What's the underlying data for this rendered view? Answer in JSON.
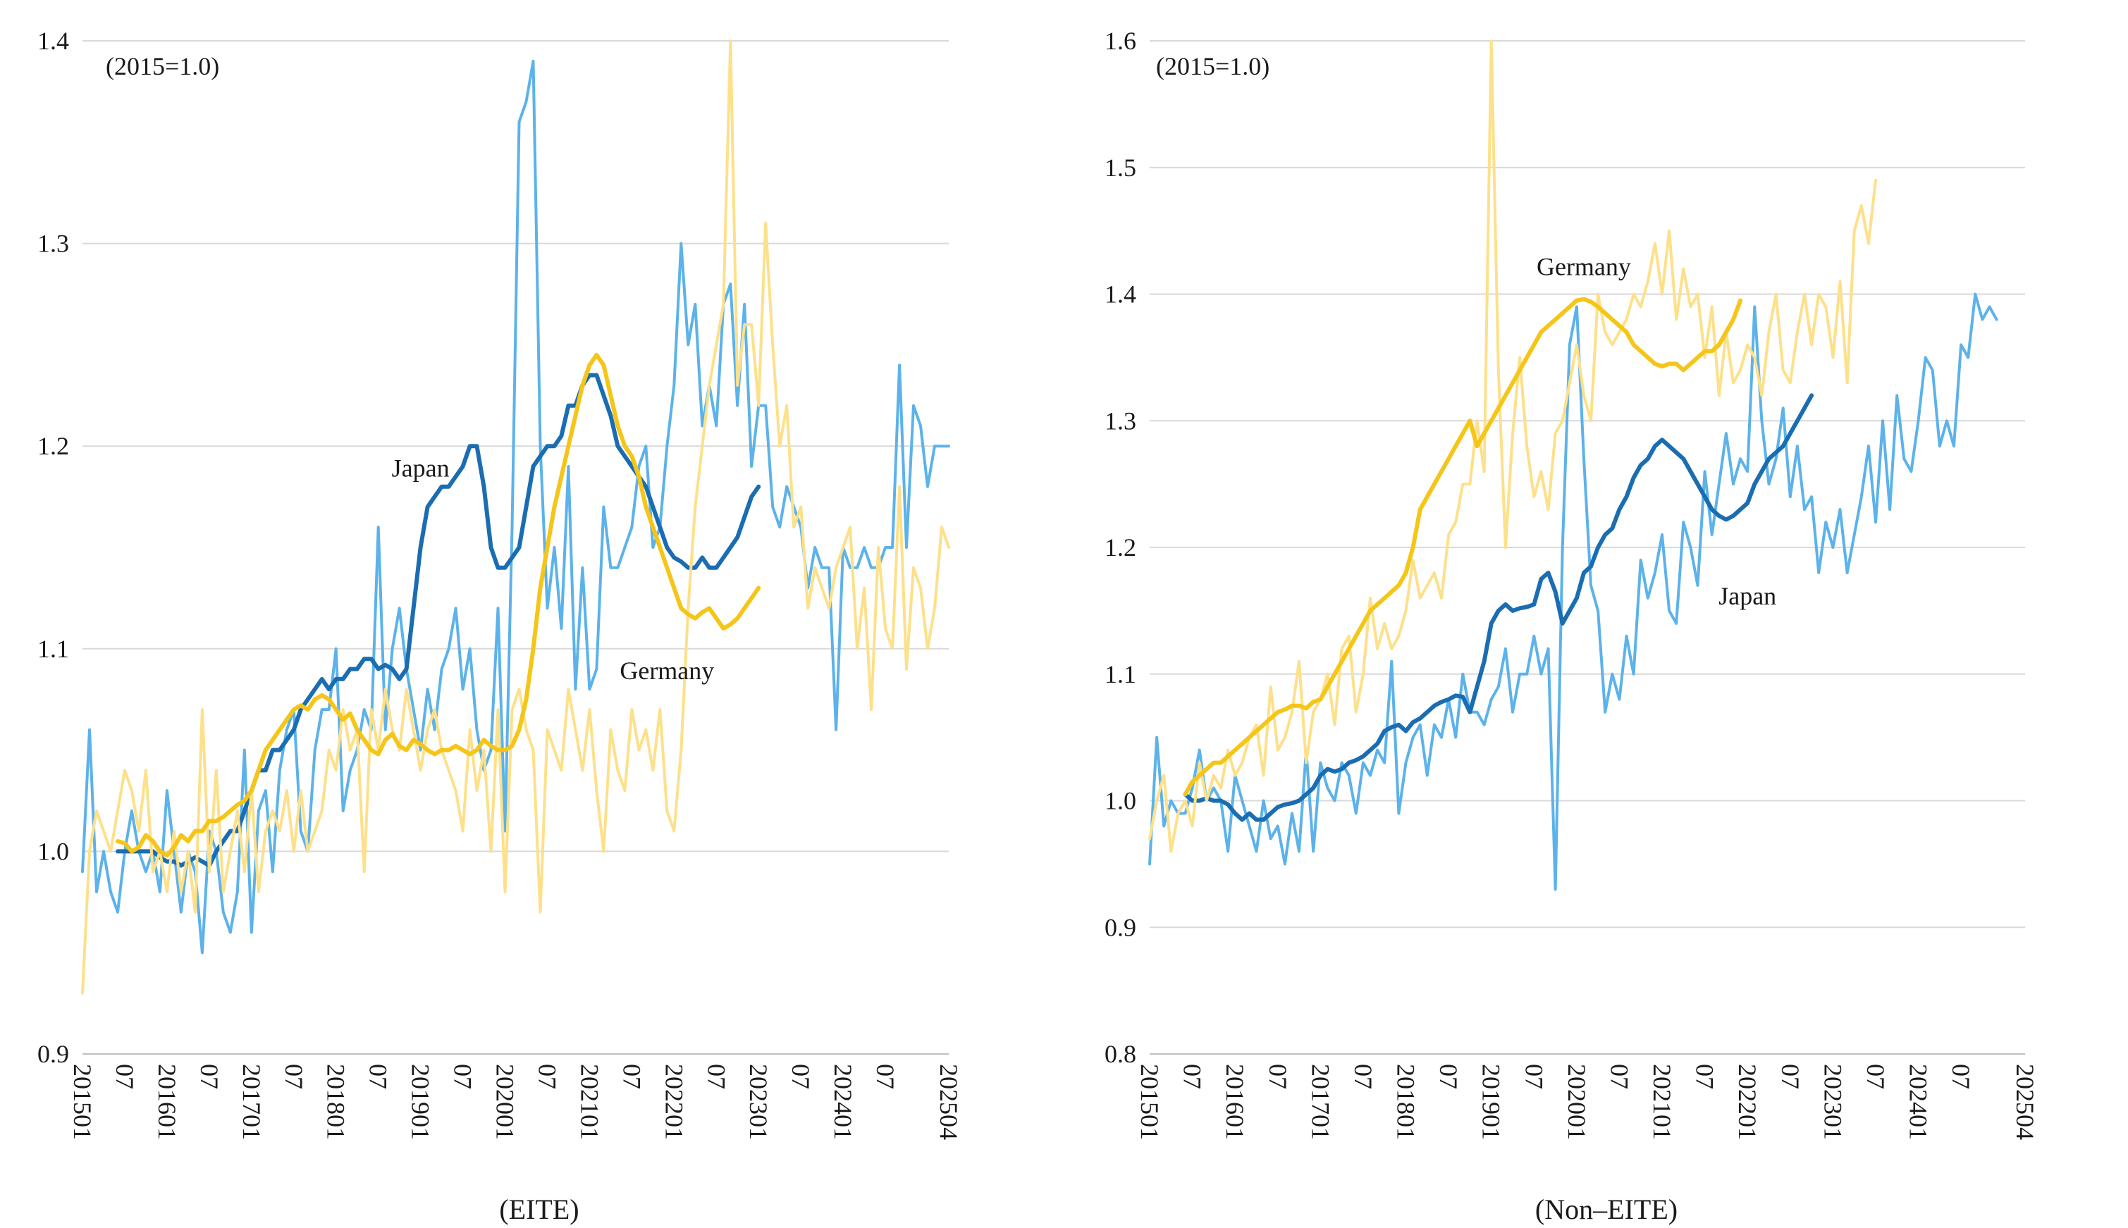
{
  "chart_data": [
    {
      "type": "line",
      "note": "(2015=1.0)",
      "xlabel": "(EITE)",
      "ylim": [
        0.9,
        1.4
      ],
      "yticks": [
        "0.9",
        "1.0",
        "1.1",
        "1.2",
        "1.3",
        "1.4"
      ],
      "x_start": "2015-01",
      "x_end": "2025-04",
      "x_tick_labels": [
        "201501",
        "07",
        "201601",
        "07",
        "201701",
        "07",
        "201801",
        "07",
        "201901",
        "07",
        "202001",
        "07",
        "202101",
        "07",
        "202201",
        "07",
        "202301",
        "07",
        "202401",
        "07",
        "202504"
      ],
      "series": [
        {
          "name": "Japan",
          "color": "#5cb2ea",
          "width": 4,
          "start": "2015-01",
          "values": [
            0.99,
            1.06,
            0.98,
            1.0,
            0.98,
            0.97,
            1.0,
            1.02,
            1.0,
            0.99,
            1.0,
            0.98,
            1.03,
            1.0,
            0.97,
            1.0,
            0.99,
            0.95,
            1.01,
            1.0,
            0.97,
            0.96,
            0.98,
            1.05,
            0.96,
            1.02,
            1.03,
            0.99,
            1.04,
            1.06,
            1.07,
            1.01,
            1.0,
            1.05,
            1.07,
            1.07,
            1.1,
            1.02,
            1.04,
            1.05,
            1.07,
            1.06,
            1.16,
            1.06,
            1.1,
            1.12,
            1.09,
            1.07,
            1.05,
            1.08,
            1.06,
            1.09,
            1.1,
            1.12,
            1.08,
            1.1,
            1.06,
            1.04,
            1.05,
            1.12,
            1.01,
            1.16,
            1.36,
            1.37,
            1.39,
            1.2,
            1.12,
            1.15,
            1.11,
            1.19,
            1.08,
            1.14,
            1.08,
            1.09,
            1.17,
            1.14,
            1.14,
            1.15,
            1.16,
            1.19,
            1.2,
            1.15,
            1.16,
            1.2,
            1.23,
            1.3,
            1.25,
            1.27,
            1.21,
            1.23,
            1.21,
            1.27,
            1.28,
            1.22,
            1.27,
            1.19,
            1.22,
            1.22,
            1.17,
            1.16,
            1.18,
            1.17,
            1.16,
            1.13,
            1.15,
            1.14,
            1.14,
            1.06,
            1.15,
            1.14,
            1.14,
            1.15,
            1.14,
            1.14,
            1.15,
            1.15,
            1.24,
            1.15,
            1.22,
            1.21,
            1.18,
            1.2,
            1.2,
            1.2
          ]
        },
        {
          "name": "Japan (moving average)",
          "color": "#1b6db2",
          "width": 6,
          "start": "2015-06",
          "values": [
            1.0,
            1.0,
            1.0,
            1.0,
            1.0,
            1.0,
            0.997,
            0.995,
            0.995,
            0.993,
            0.995,
            0.997,
            0.995,
            0.993,
            1.0,
            1.005,
            1.01,
            1.01,
            1.02,
            1.03,
            1.04,
            1.04,
            1.05,
            1.05,
            1.055,
            1.06,
            1.07,
            1.075,
            1.08,
            1.085,
            1.08,
            1.085,
            1.085,
            1.09,
            1.09,
            1.095,
            1.095,
            1.09,
            1.092,
            1.09,
            1.085,
            1.09,
            1.12,
            1.15,
            1.17,
            1.175,
            1.18,
            1.18,
            1.185,
            1.19,
            1.2,
            1.2,
            1.18,
            1.15,
            1.14,
            1.14,
            1.145,
            1.15,
            1.17,
            1.19,
            1.195,
            1.2,
            1.2,
            1.205,
            1.22,
            1.22,
            1.23,
            1.235,
            1.235,
            1.225,
            1.215,
            1.2,
            1.195,
            1.19,
            1.185,
            1.18,
            1.17,
            1.16,
            1.15,
            1.145,
            1.143,
            1.14,
            1.14,
            1.145,
            1.14,
            1.14,
            1.145,
            1.15,
            1.155,
            1.165,
            1.175,
            1.18
          ]
        },
        {
          "name": "Germany",
          "color": "#fde08a",
          "width": 4,
          "start": "2015-01",
          "values": [
            0.93,
            1.0,
            1.02,
            1.01,
            1.0,
            1.02,
            1.04,
            1.03,
            1.01,
            1.04,
            0.99,
            1.0,
            0.98,
            1.01,
            0.98,
            1.0,
            0.97,
            1.07,
            0.99,
            1.04,
            0.98,
            1.0,
            1.02,
            0.99,
            1.03,
            0.98,
            1.01,
            1.02,
            1.01,
            1.03,
            1.0,
            1.03,
            1.0,
            1.01,
            1.02,
            1.05,
            1.04,
            1.07,
            1.05,
            1.06,
            0.99,
            1.07,
            1.05,
            1.08,
            1.06,
            1.05,
            1.08,
            1.06,
            1.04,
            1.06,
            1.07,
            1.05,
            1.04,
            1.03,
            1.01,
            1.06,
            1.03,
            1.05,
            1.0,
            1.07,
            0.98,
            1.07,
            1.08,
            1.06,
            1.05,
            0.97,
            1.06,
            1.05,
            1.04,
            1.08,
            1.06,
            1.04,
            1.07,
            1.03,
            1.0,
            1.06,
            1.04,
            1.03,
            1.07,
            1.05,
            1.06,
            1.04,
            1.07,
            1.02,
            1.01,
            1.05,
            1.12,
            1.17,
            1.2,
            1.23,
            1.25,
            1.27,
            1.4,
            1.23,
            1.26,
            1.26,
            1.22,
            1.31,
            1.25,
            1.2,
            1.22,
            1.16,
            1.17,
            1.12,
            1.14,
            1.13,
            1.12,
            1.14,
            1.15,
            1.16,
            1.1,
            1.13,
            1.07,
            1.15,
            1.11,
            1.1,
            1.18,
            1.09,
            1.14,
            1.13,
            1.1,
            1.12,
            1.16,
            1.15
          ]
        },
        {
          "name": "Germany (moving average)",
          "color": "#f5c518",
          "width": 6,
          "start": "2015-06",
          "values": [
            1.005,
            1.004,
            1.0,
            1.002,
            1.008,
            1.005,
            1.0,
            0.998,
            1.002,
            1.008,
            1.005,
            1.01,
            1.01,
            1.015,
            1.015,
            1.017,
            1.02,
            1.023,
            1.025,
            1.03,
            1.04,
            1.05,
            1.055,
            1.06,
            1.065,
            1.07,
            1.072,
            1.07,
            1.075,
            1.077,
            1.075,
            1.07,
            1.065,
            1.068,
            1.06,
            1.055,
            1.05,
            1.048,
            1.055,
            1.058,
            1.052,
            1.05,
            1.055,
            1.053,
            1.05,
            1.048,
            1.05,
            1.05,
            1.052,
            1.05,
            1.048,
            1.05,
            1.055,
            1.052,
            1.05,
            1.05,
            1.052,
            1.06,
            1.075,
            1.1,
            1.13,
            1.15,
            1.17,
            1.185,
            1.2,
            1.215,
            1.23,
            1.24,
            1.245,
            1.24,
            1.225,
            1.21,
            1.2,
            1.195,
            1.185,
            1.17,
            1.16,
            1.15,
            1.14,
            1.13,
            1.12,
            1.117,
            1.115,
            1.118,
            1.12,
            1.115,
            1.11,
            1.112,
            1.115,
            1.12,
            1.125,
            1.13
          ]
        }
      ],
      "annotations": [
        {
          "text": "Japan",
          "x": "2019-01",
          "y": 1.185
        },
        {
          "text": "Germany",
          "x": "2021-12",
          "y": 1.085
        }
      ]
    },
    {
      "type": "line",
      "note": "(2015=1.0)",
      "xlabel": "(Non–EITE)",
      "ylim": [
        0.8,
        1.6
      ],
      "yticks": [
        "0.8",
        "0.9",
        "1.0",
        "1.1",
        "1.2",
        "1.3",
        "1.4",
        "1.5",
        "1.6"
      ],
      "x_start": "2015-01",
      "x_end": "2025-04",
      "x_tick_labels": [
        "201501",
        "07",
        "201601",
        "07",
        "201701",
        "07",
        "201801",
        "07",
        "201901",
        "07",
        "202001",
        "07",
        "202101",
        "07",
        "202201",
        "07",
        "202301",
        "07",
        "202401",
        "07",
        "202504"
      ],
      "series": [
        {
          "name": "Japan",
          "color": "#5cb2ea",
          "width": 4,
          "start": "2015-01",
          "values": [
            0.95,
            1.05,
            0.98,
            1.0,
            0.99,
            0.99,
            1.01,
            1.04,
            1.0,
            1.01,
            1.0,
            0.96,
            1.02,
            1.0,
            0.98,
            0.96,
            1.0,
            0.97,
            0.98,
            0.95,
            0.99,
            0.96,
            1.04,
            0.96,
            1.03,
            1.01,
            1.0,
            1.03,
            1.02,
            0.99,
            1.03,
            1.02,
            1.04,
            1.03,
            1.11,
            0.99,
            1.03,
            1.05,
            1.06,
            1.02,
            1.06,
            1.05,
            1.08,
            1.05,
            1.1,
            1.07,
            1.07,
            1.06,
            1.08,
            1.09,
            1.12,
            1.07,
            1.1,
            1.1,
            1.13,
            1.1,
            1.12,
            0.93,
            1.2,
            1.36,
            1.39,
            1.27,
            1.17,
            1.15,
            1.07,
            1.1,
            1.08,
            1.13,
            1.1,
            1.19,
            1.16,
            1.18,
            1.21,
            1.15,
            1.14,
            1.22,
            1.2,
            1.17,
            1.26,
            1.21,
            1.25,
            1.29,
            1.25,
            1.27,
            1.26,
            1.39,
            1.3,
            1.25,
            1.27,
            1.31,
            1.24,
            1.28,
            1.23,
            1.24,
            1.18,
            1.22,
            1.2,
            1.23,
            1.18,
            1.21,
            1.24,
            1.28,
            1.22,
            1.3,
            1.23,
            1.32,
            1.27,
            1.26,
            1.3,
            1.35,
            1.34,
            1.28,
            1.3,
            1.28,
            1.36,
            1.35,
            1.4,
            1.38,
            1.39,
            1.38
          ]
        },
        {
          "name": "Japan (moving average)",
          "color": "#1b6db2",
          "width": 6,
          "start": "2015-06",
          "values": [
            1.005,
            1.0,
            1.0,
            1.002,
            1.0,
            1.0,
            0.997,
            0.99,
            0.985,
            0.99,
            0.985,
            0.985,
            0.99,
            0.995,
            0.997,
            0.998,
            1.0,
            1.005,
            1.01,
            1.02,
            1.025,
            1.023,
            1.025,
            1.03,
            1.032,
            1.035,
            1.04,
            1.045,
            1.055,
            1.058,
            1.06,
            1.055,
            1.062,
            1.065,
            1.07,
            1.075,
            1.078,
            1.08,
            1.083,
            1.082,
            1.07,
            1.09,
            1.11,
            1.14,
            1.15,
            1.155,
            1.15,
            1.152,
            1.153,
            1.155,
            1.175,
            1.18,
            1.165,
            1.14,
            1.15,
            1.16,
            1.18,
            1.185,
            1.2,
            1.21,
            1.215,
            1.23,
            1.24,
            1.255,
            1.265,
            1.27,
            1.28,
            1.285,
            1.28,
            1.275,
            1.27,
            1.26,
            1.25,
            1.24,
            1.23,
            1.225,
            1.222,
            1.225,
            1.23,
            1.235,
            1.25,
            1.26,
            1.27,
            1.275,
            1.28,
            1.29,
            1.3,
            1.31,
            1.32
          ]
        },
        {
          "name": "Germany",
          "color": "#fde08a",
          "width": 4,
          "start": "2015-01",
          "values": [
            0.97,
            1.0,
            1.02,
            0.96,
            0.99,
            1.0,
            0.98,
            1.03,
            1.0,
            1.02,
            1.01,
            1.04,
            1.02,
            1.03,
            1.05,
            1.06,
            1.02,
            1.09,
            1.04,
            1.05,
            1.07,
            1.11,
            1.03,
            1.07,
            1.08,
            1.1,
            1.06,
            1.12,
            1.13,
            1.07,
            1.1,
            1.16,
            1.12,
            1.14,
            1.12,
            1.13,
            1.15,
            1.19,
            1.16,
            1.17,
            1.18,
            1.16,
            1.21,
            1.22,
            1.25,
            1.25,
            1.3,
            1.26,
            1.6,
            1.34,
            1.2,
            1.29,
            1.35,
            1.28,
            1.24,
            1.26,
            1.23,
            1.29,
            1.3,
            1.33,
            1.36,
            1.32,
            1.3,
            1.4,
            1.37,
            1.36,
            1.37,
            1.38,
            1.4,
            1.39,
            1.41,
            1.44,
            1.4,
            1.45,
            1.38,
            1.42,
            1.39,
            1.4,
            1.35,
            1.39,
            1.32,
            1.37,
            1.33,
            1.34,
            1.36,
            1.35,
            1.32,
            1.37,
            1.4,
            1.34,
            1.33,
            1.37,
            1.4,
            1.36,
            1.4,
            1.39,
            1.35,
            1.41,
            1.33,
            1.45,
            1.47,
            1.44,
            1.49
          ]
        },
        {
          "name": "Germany (moving average)",
          "color": "#f5c518",
          "width": 6,
          "start": "2015-06",
          "values": [
            1.005,
            1.015,
            1.02,
            1.025,
            1.03,
            1.03,
            1.035,
            1.04,
            1.045,
            1.05,
            1.055,
            1.06,
            1.065,
            1.07,
            1.072,
            1.075,
            1.075,
            1.073,
            1.078,
            1.08,
            1.09,
            1.1,
            1.11,
            1.12,
            1.13,
            1.14,
            1.15,
            1.155,
            1.16,
            1.165,
            1.17,
            1.18,
            1.2,
            1.23,
            1.24,
            1.25,
            1.26,
            1.27,
            1.28,
            1.29,
            1.3,
            1.28,
            1.29,
            1.3,
            1.31,
            1.32,
            1.33,
            1.34,
            1.35,
            1.36,
            1.37,
            1.375,
            1.38,
            1.385,
            1.39,
            1.395,
            1.396,
            1.394,
            1.39,
            1.385,
            1.38,
            1.375,
            1.37,
            1.36,
            1.355,
            1.35,
            1.345,
            1.343,
            1.345,
            1.345,
            1.34,
            1.345,
            1.35,
            1.355,
            1.355,
            1.36,
            1.37,
            1.38,
            1.395
          ]
        }
      ],
      "annotations": [
        {
          "text": "Germany",
          "x": "2020-02",
          "y": 1.415
        },
        {
          "text": "Japan",
          "x": "2022-01",
          "y": 1.155
        }
      ]
    }
  ]
}
